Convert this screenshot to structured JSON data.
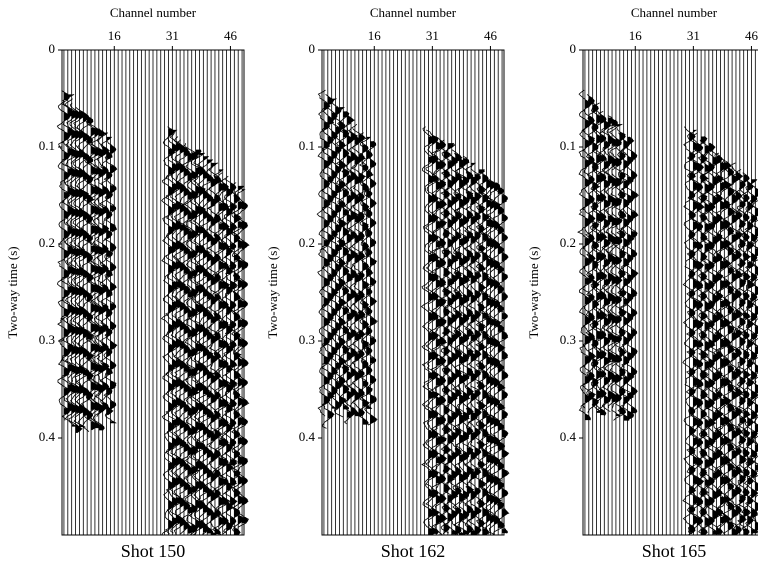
{
  "chart_data": [
    {
      "type": "seismic",
      "title": "Shot 150",
      "xlabel": "Channel number",
      "ylabel": "Two-way time (s)",
      "xlim": [
        2.5,
        49.5
      ],
      "xticks": [
        16,
        31,
        46
      ],
      "ylim": [
        0,
        0.5
      ],
      "yticks": [
        0,
        0.1,
        0.2,
        0.3,
        0.4
      ]
    },
    {
      "type": "seismic",
      "title": "Shot 162",
      "xlabel": "Channel number",
      "ylabel": "Two-way time (s)",
      "xlim": [
        2.5,
        49.5
      ],
      "xticks": [
        16,
        31,
        46
      ],
      "ylim": [
        0,
        0.5
      ],
      "yticks": [
        0,
        0.1,
        0.2,
        0.3,
        0.4
      ]
    },
    {
      "type": "seismic",
      "title": "Shot 165",
      "xlabel": "Channel number",
      "ylabel": "Two-way time (s)",
      "xlim": [
        2.5,
        49.5
      ],
      "xticks": [
        16,
        31,
        46
      ],
      "ylim": [
        0,
        0.5
      ],
      "yticks": [
        0,
        0.1,
        0.2,
        0.3,
        0.4
      ]
    }
  ]
}
